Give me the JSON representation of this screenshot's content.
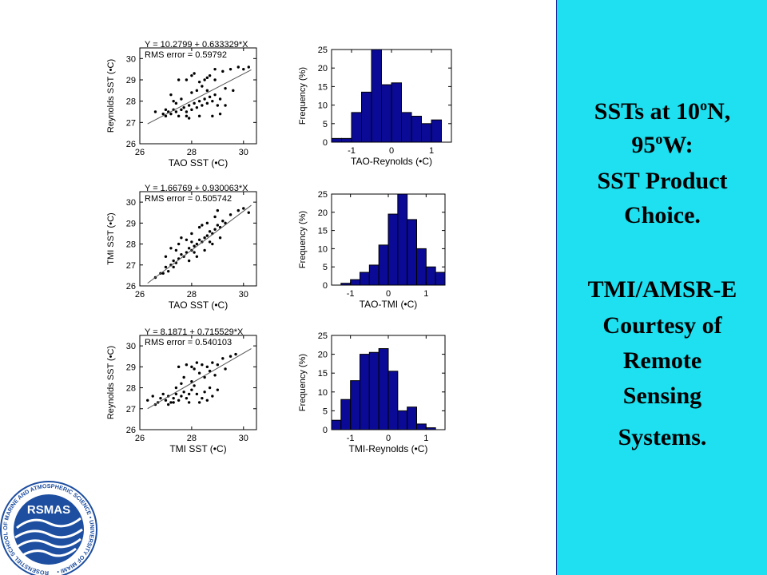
{
  "chart_data": [
    {
      "type": "scatter",
      "equation": "Y = 10.2799 + 0.633329*X",
      "rms": "RMS error = 0.59792",
      "xlabel": "TAO SST (•C)",
      "ylabel": "Reynolds SST (•C)",
      "xlim": [
        26,
        30.5
      ],
      "ylim": [
        26,
        30.5
      ],
      "xticks": [
        "26",
        "28",
        "30"
      ],
      "yticks": [
        "26",
        "27",
        "28",
        "29",
        "30"
      ],
      "fit": {
        "intercept": 10.2799,
        "slope": 0.633329
      },
      "points": [
        [
          26.6,
          27.5
        ],
        [
          26.9,
          27.4
        ],
        [
          27.0,
          27.3
        ],
        [
          27.1,
          27.5
        ],
        [
          27.2,
          27.4
        ],
        [
          27.3,
          27.6
        ],
        [
          27.4,
          27.5
        ],
        [
          27.5,
          27.3
        ],
        [
          27.6,
          27.6
        ],
        [
          27.7,
          27.7
        ],
        [
          27.8,
          27.5
        ],
        [
          27.9,
          27.8
        ],
        [
          28.0,
          27.6
        ],
        [
          28.1,
          27.9
        ],
        [
          28.2,
          27.7
        ],
        [
          28.3,
          28.0
        ],
        [
          28.4,
          27.8
        ],
        [
          28.5,
          28.1
        ],
        [
          28.6,
          27.9
        ],
        [
          28.7,
          28.2
        ],
        [
          28.8,
          28.0
        ],
        [
          28.9,
          28.3
        ],
        [
          29.0,
          27.8
        ],
        [
          29.1,
          28.1
        ],
        [
          28.2,
          28.5
        ],
        [
          28.4,
          28.7
        ],
        [
          28.5,
          29.0
        ],
        [
          28.7,
          29.2
        ],
        [
          28.9,
          29.0
        ],
        [
          29.2,
          29.4
        ],
        [
          29.5,
          29.5
        ],
        [
          29.8,
          29.6
        ],
        [
          30.0,
          29.5
        ],
        [
          30.2,
          29.6
        ],
        [
          27.5,
          29.0
        ],
        [
          27.8,
          29.0
        ],
        [
          28.0,
          29.2
        ],
        [
          28.3,
          28.9
        ],
        [
          28.6,
          29.1
        ],
        [
          27.8,
          27.3
        ],
        [
          28.3,
          27.3
        ],
        [
          28.8,
          27.3
        ],
        [
          29.1,
          27.4
        ],
        [
          29.3,
          27.8
        ],
        [
          27.3,
          28.0
        ],
        [
          27.6,
          28.1
        ],
        [
          27.2,
          28.3
        ],
        [
          28.1,
          29.3
        ],
        [
          28.9,
          29.5
        ],
        [
          29.6,
          28.5
        ],
        [
          29.3,
          28.6
        ],
        [
          27.4,
          27.9
        ],
        [
          27.9,
          27.2
        ],
        [
          28.0,
          28.4
        ],
        [
          28.6,
          28.5
        ],
        [
          27.0,
          27.6
        ]
      ]
    },
    {
      "type": "bar",
      "xlabel": "TAO-Reynolds (•C)",
      "ylabel": "Frequency (%)",
      "xlim": [
        -1.5,
        1.5
      ],
      "ylim": [
        0,
        25
      ],
      "xticks": [
        "-1",
        "0",
        "1"
      ],
      "yticks": [
        "0",
        "5",
        "10",
        "15",
        "20",
        "25"
      ],
      "bin_start": -1.5,
      "bin_width": 0.25,
      "values": [
        1,
        1,
        8,
        13.5,
        25,
        15.5,
        16,
        8,
        7,
        5,
        6
      ]
    },
    {
      "type": "scatter",
      "equation": "Y = 1.66769 + 0.930063*X",
      "rms": "RMS error = 0.505742",
      "xlabel": "TAO SST (•C)",
      "ylabel": "TMI SST (•C)",
      "xlim": [
        26,
        30.5
      ],
      "ylim": [
        26,
        30.5
      ],
      "xticks": [
        "26",
        "28",
        "30"
      ],
      "yticks": [
        "26",
        "27",
        "28",
        "29",
        "30"
      ],
      "fit": {
        "intercept": 1.66769,
        "slope": 0.930063
      },
      "points": [
        [
          26.6,
          26.4
        ],
        [
          26.8,
          26.6
        ],
        [
          27.0,
          26.9
        ],
        [
          27.1,
          26.7
        ],
        [
          27.2,
          27.0
        ],
        [
          27.3,
          27.2
        ],
        [
          27.4,
          27.1
        ],
        [
          27.5,
          27.3
        ],
        [
          27.6,
          27.5
        ],
        [
          27.7,
          27.4
        ],
        [
          27.8,
          27.6
        ],
        [
          27.9,
          27.8
        ],
        [
          28.0,
          27.7
        ],
        [
          28.1,
          27.9
        ],
        [
          28.2,
          28.0
        ],
        [
          28.3,
          28.2
        ],
        [
          28.4,
          28.1
        ],
        [
          28.5,
          28.3
        ],
        [
          28.6,
          28.4
        ],
        [
          28.7,
          28.6
        ],
        [
          28.8,
          28.5
        ],
        [
          28.9,
          28.7
        ],
        [
          29.0,
          28.9
        ],
        [
          29.1,
          28.8
        ],
        [
          29.2,
          29.1
        ],
        [
          29.5,
          29.4
        ],
        [
          29.8,
          29.6
        ],
        [
          30.0,
          29.7
        ],
        [
          30.2,
          29.5
        ],
        [
          27.2,
          27.8
        ],
        [
          27.5,
          28.0
        ],
        [
          27.8,
          28.2
        ],
        [
          28.0,
          28.5
        ],
        [
          28.3,
          28.8
        ],
        [
          28.6,
          29.0
        ],
        [
          28.9,
          29.3
        ],
        [
          29.0,
          29.6
        ],
        [
          27.9,
          27.2
        ],
        [
          28.2,
          27.4
        ],
        [
          28.5,
          27.7
        ],
        [
          28.8,
          28.0
        ],
        [
          29.1,
          28.3
        ],
        [
          27.0,
          27.4
        ],
        [
          27.4,
          27.7
        ],
        [
          26.9,
          26.6
        ],
        [
          27.6,
          28.3
        ],
        [
          28.4,
          28.9
        ],
        [
          28.1,
          27.6
        ],
        [
          28.7,
          28.1
        ],
        [
          27.3,
          26.9
        ],
        [
          29.3,
          29.0
        ],
        [
          28.0,
          28.1
        ]
      ]
    },
    {
      "type": "bar",
      "xlabel": "TAO-TMI (•C)",
      "ylabel": "Frequency (%)",
      "xlim": [
        -1.5,
        1.5
      ],
      "ylim": [
        0,
        25
      ],
      "xticks": [
        "-1",
        "0",
        "1"
      ],
      "yticks": [
        "0",
        "5",
        "10",
        "15",
        "20",
        "25"
      ],
      "bin_start": -1.25,
      "bin_width": 0.25,
      "values": [
        0.5,
        1.5,
        3.5,
        5.5,
        11,
        19.5,
        25,
        18,
        10,
        5,
        3.5
      ]
    },
    {
      "type": "scatter",
      "equation": "Y = 8.1871 + 0.715529*X",
      "rms": "RMS error = 0.540103",
      "xlabel": "TMI SST (•C)",
      "ylabel": "Reynolds SST (•C)",
      "xlim": [
        26,
        30.5
      ],
      "ylim": [
        26,
        30.5
      ],
      "xticks": [
        "26",
        "28",
        "30"
      ],
      "yticks": [
        "26",
        "27",
        "28",
        "29",
        "30"
      ],
      "fit": {
        "intercept": 8.1871,
        "slope": 0.715529
      },
      "points": [
        [
          26.3,
          27.4
        ],
        [
          26.5,
          27.6
        ],
        [
          26.7,
          27.3
        ],
        [
          26.8,
          27.5
        ],
        [
          26.9,
          27.7
        ],
        [
          27.0,
          27.4
        ],
        [
          27.1,
          27.6
        ],
        [
          27.2,
          27.3
        ],
        [
          27.3,
          27.5
        ],
        [
          27.4,
          27.7
        ],
        [
          27.5,
          27.4
        ],
        [
          27.6,
          27.6
        ],
        [
          27.7,
          27.8
        ],
        [
          27.8,
          27.5
        ],
        [
          27.9,
          27.7
        ],
        [
          28.0,
          27.9
        ],
        [
          28.1,
          28.1
        ],
        [
          28.2,
          27.7
        ],
        [
          28.3,
          27.3
        ],
        [
          28.4,
          27.5
        ],
        [
          28.5,
          27.8
        ],
        [
          28.6,
          27.4
        ],
        [
          28.7,
          28.0
        ],
        [
          28.8,
          27.6
        ],
        [
          29.0,
          27.9
        ],
        [
          27.5,
          29.0
        ],
        [
          27.8,
          29.1
        ],
        [
          28.0,
          29.0
        ],
        [
          28.2,
          29.2
        ],
        [
          28.4,
          29.1
        ],
        [
          28.6,
          29.0
        ],
        [
          28.8,
          29.2
        ],
        [
          29.0,
          29.1
        ],
        [
          29.2,
          29.4
        ],
        [
          29.5,
          29.5
        ],
        [
          29.7,
          29.6
        ],
        [
          27.7,
          28.5
        ],
        [
          28.0,
          28.3
        ],
        [
          28.3,
          28.7
        ],
        [
          28.5,
          28.5
        ],
        [
          28.7,
          28.8
        ],
        [
          27.4,
          28.0
        ],
        [
          27.6,
          28.2
        ],
        [
          27.1,
          27.2
        ],
        [
          27.3,
          27.3
        ],
        [
          27.9,
          27.3
        ],
        [
          26.6,
          27.2
        ],
        [
          28.9,
          28.6
        ],
        [
          29.3,
          28.9
        ],
        [
          28.1,
          28.9
        ]
      ]
    },
    {
      "type": "bar",
      "xlabel": "TMI-Reynolds (•C)",
      "ylabel": "Frequency (%)",
      "xlim": [
        -1.5,
        1.5
      ],
      "ylim": [
        0,
        25
      ],
      "xticks": [
        "-1",
        "0",
        "1"
      ],
      "yticks": [
        "0",
        "5",
        "10",
        "15",
        "20",
        "25"
      ],
      "bin_start": -1.5,
      "bin_width": 0.25,
      "values": [
        2.5,
        8,
        13,
        20,
        20.5,
        21.5,
        15.5,
        5,
        6,
        1.5,
        0.5
      ]
    }
  ],
  "side_panel": {
    "line1": "SSTs at 10",
    "line1_sup": "o",
    "line1_end": "N,",
    "line2": "95",
    "line2_sup": "o",
    "line2_end": "W:",
    "line3": "SST Product",
    "line4": "Choice.",
    "line5": "TMI/AMSR-E",
    "line6": "Courtesy of",
    "line7": "Remote",
    "line8": "Sensing",
    "line9": "Systems."
  },
  "logo": {
    "name": "RSMAS",
    "ring_text": "ROSENSTIEL SCHOOL OF MARINE AND ATMOSPHERIC SCIENCE • UNIVERSITY OF MIAMI •",
    "color": "#1d4ea0"
  }
}
